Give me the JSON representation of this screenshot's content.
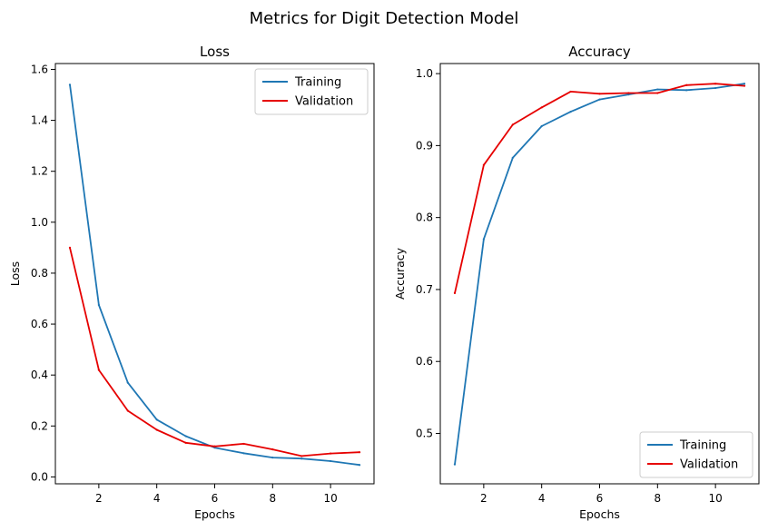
{
  "suptitle": "Metrics for Digit Detection Model",
  "colors": {
    "training": "#1f77b4",
    "validation": "#e60000",
    "axes": "#000000"
  },
  "chart_data": [
    {
      "type": "line",
      "title": "Loss",
      "xlabel": "Epochs",
      "ylabel": "Loss",
      "xlim": [
        0.5,
        11.5
      ],
      "ylim": [
        -0.027,
        1.623
      ],
      "xticks": [
        2,
        4,
        6,
        8,
        10
      ],
      "yticks": [
        0.0,
        0.2,
        0.4,
        0.6,
        0.8,
        1.0,
        1.2,
        1.4,
        1.6
      ],
      "ytick_decimals": 1,
      "legend": "top-right",
      "grid": false,
      "x": [
        1,
        2,
        3,
        4,
        5,
        6,
        7,
        8,
        9,
        10,
        11
      ],
      "series": [
        {
          "name": "Training",
          "color_key": "training",
          "values": [
            1.54,
            0.675,
            0.37,
            0.225,
            0.16,
            0.115,
            0.093,
            0.076,
            0.072,
            0.062,
            0.047
          ]
        },
        {
          "name": "Validation",
          "color_key": "validation",
          "values": [
            0.9,
            0.42,
            0.26,
            0.185,
            0.134,
            0.12,
            0.13,
            0.108,
            0.082,
            0.092,
            0.097
          ]
        }
      ]
    },
    {
      "type": "line",
      "title": "Accuracy",
      "xlabel": "Epochs",
      "ylabel": "Accuracy",
      "xlim": [
        0.5,
        11.5
      ],
      "ylim": [
        0.43,
        1.014
      ],
      "xticks": [
        2,
        4,
        6,
        8,
        10
      ],
      "yticks": [
        0.5,
        0.6,
        0.7,
        0.8,
        0.9,
        1.0
      ],
      "ytick_decimals": 1,
      "legend": "bottom-right",
      "grid": false,
      "x": [
        1,
        2,
        3,
        4,
        5,
        6,
        7,
        8,
        9,
        10,
        11
      ],
      "series": [
        {
          "name": "Training",
          "color_key": "training",
          "values": [
            0.457,
            0.77,
            0.883,
            0.927,
            0.947,
            0.964,
            0.971,
            0.978,
            0.977,
            0.98,
            0.986
          ]
        },
        {
          "name": "Validation",
          "color_key": "validation",
          "values": [
            0.695,
            0.873,
            0.929,
            0.953,
            0.975,
            0.972,
            0.973,
            0.973,
            0.984,
            0.986,
            0.983
          ]
        }
      ]
    }
  ]
}
